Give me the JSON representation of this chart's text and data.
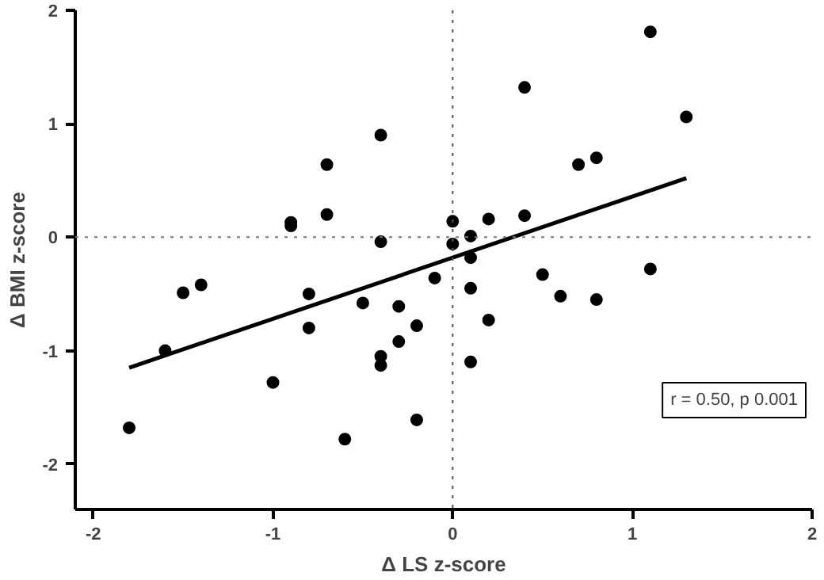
{
  "chart_data": {
    "type": "scatter",
    "xlabel": "Δ LS z-score",
    "ylabel": "Δ BMI z-score",
    "xlim": [
      -2.1,
      2
    ],
    "ylim": [
      -2.4,
      2
    ],
    "xticks": [
      -2,
      -1,
      0,
      1,
      2
    ],
    "yticks": [
      -2,
      -1,
      0,
      1,
      2
    ],
    "grid": false,
    "series": [
      {
        "color": "#000000",
        "marker": "circle",
        "x": [
          -1.8,
          -1.6,
          -1.5,
          -1.4,
          -1.0,
          -0.9,
          -0.9,
          -0.8,
          -0.8,
          -0.7,
          -0.7,
          -0.6,
          -0.5,
          -0.4,
          -0.4,
          -0.4,
          -0.4,
          -0.3,
          -0.3,
          -0.2,
          -0.2,
          -0.1,
          0.0,
          0.0,
          0.1,
          0.1,
          0.1,
          0.1,
          0.2,
          0.2,
          0.4,
          0.4,
          0.5,
          0.6,
          0.7,
          0.8,
          0.8,
          1.1,
          1.1,
          1.3
        ],
        "values": [
          -1.68,
          -1.0,
          -0.49,
          -0.42,
          -1.28,
          0.13,
          0.1,
          -0.5,
          -0.8,
          0.64,
          0.2,
          -1.78,
          -0.58,
          0.9,
          -0.04,
          -1.05,
          -1.13,
          -0.61,
          -0.92,
          -0.78,
          -1.61,
          -0.36,
          0.14,
          -0.06,
          0.01,
          -0.18,
          -0.45,
          -1.1,
          0.16,
          -0.73,
          1.32,
          0.19,
          -0.33,
          -0.52,
          0.64,
          0.7,
          -0.55,
          1.81,
          -0.28,
          1.06
        ]
      },
      {
        "type": "line",
        "color": "#000000",
        "x": [
          -1.8,
          1.3
        ],
        "values": [
          -1.15,
          0.52
        ],
        "line_style": "solid"
      }
    ],
    "ref_lines": [
      {
        "axis": "x",
        "value": 0,
        "line_style": "dotted",
        "color": "#555555"
      },
      {
        "axis": "y",
        "value": 0,
        "line_style": "dotted",
        "color": "#777777"
      }
    ],
    "annotations": [
      "r = 0.50, p 0.001"
    ]
  }
}
